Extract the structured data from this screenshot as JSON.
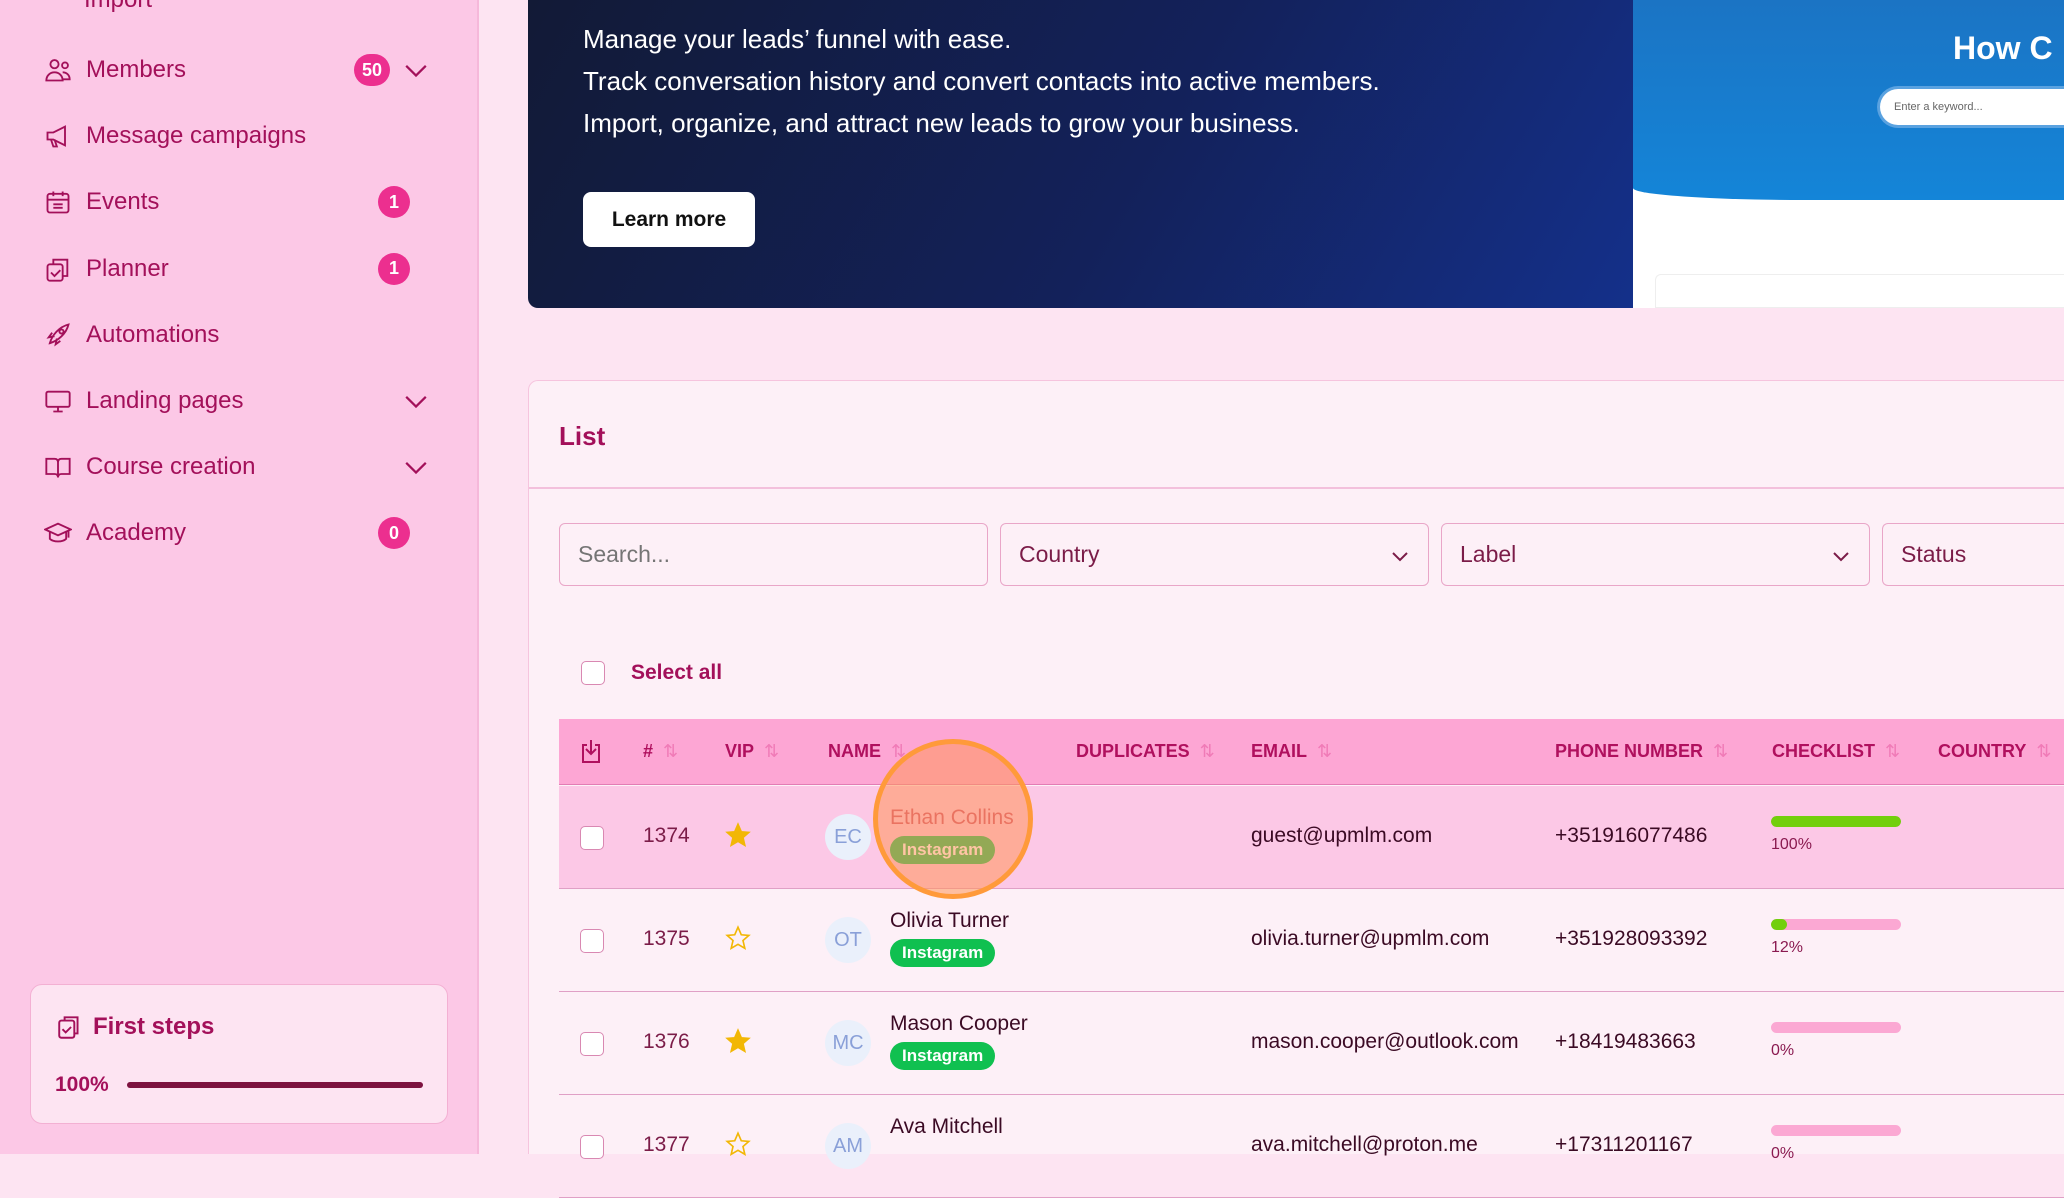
{
  "sidebar": {
    "partial_item": "Import",
    "items": [
      {
        "label": "Members",
        "icon": "users-icon",
        "badge": "50",
        "chevron": true
      },
      {
        "label": "Message campaigns",
        "icon": "megaphone-icon"
      },
      {
        "label": "Events",
        "icon": "calendar-icon",
        "badge": "1"
      },
      {
        "label": "Planner",
        "icon": "clipboard-check-icon",
        "badge": "1"
      },
      {
        "label": "Automations",
        "icon": "rocket-icon"
      },
      {
        "label": "Landing pages",
        "icon": "monitor-icon",
        "chevron": true
      },
      {
        "label": "Course creation",
        "icon": "book-icon",
        "chevron": true
      },
      {
        "label": "Academy",
        "icon": "graduation-cap-icon",
        "badge": "0"
      }
    ],
    "first_steps": {
      "title": "First steps",
      "percent_label": "100%",
      "progress": 100
    }
  },
  "banner": {
    "lines": [
      "Manage your leads’ funnel with ease.",
      "Track conversation history and convert contacts into active members.",
      "Import, organize, and attract new leads to grow your business."
    ],
    "button": "Learn more",
    "preview": {
      "heading": "How C",
      "search_placeholder": "Enter a keyword..."
    }
  },
  "list": {
    "title": "List",
    "search_placeholder": "Search...",
    "filters": [
      "Country",
      "Label",
      "Status"
    ],
    "select_all": "Select all",
    "columns": [
      "#",
      "VIP",
      "NAME",
      "DUPLICATES",
      "EMAIL",
      "PHONE NUMBER",
      "CHECKLIST",
      "COUNTRY"
    ],
    "rows": [
      {
        "id": "1374",
        "vip": true,
        "initials": "EC",
        "name": "Ethan Collins",
        "tag": "Instagram",
        "email": "guest@upmlm.com",
        "phone": "+351916077486",
        "checklist": 100,
        "checklist_label": "100%"
      },
      {
        "id": "1375",
        "vip": false,
        "initials": "OT",
        "name": "Olivia Turner",
        "tag": "Instagram",
        "email": "olivia.turner@upmlm.com",
        "phone": "+351928093392",
        "checklist": 12,
        "checklist_label": "12%"
      },
      {
        "id": "1376",
        "vip": true,
        "initials": "MC",
        "name": "Mason Cooper",
        "tag": "Instagram",
        "email": "mason.cooper@outlook.com",
        "phone": "+18419483663",
        "checklist": 0,
        "checklist_label": "0%"
      },
      {
        "id": "1377",
        "vip": false,
        "initials": "AM",
        "name": "Ava Mitchell",
        "email": "ava.mitchell@proton.me",
        "phone": "+17311201167",
        "checklist": 0,
        "checklist_label": "0%"
      }
    ]
  },
  "colors": {
    "accent": "#ec2f8f",
    "sidebar_bg": "#fcc8e6",
    "header_bg": "#fda6d4",
    "tag": "#10c050",
    "progress": "#72cf0d",
    "star": "#f2b705"
  }
}
